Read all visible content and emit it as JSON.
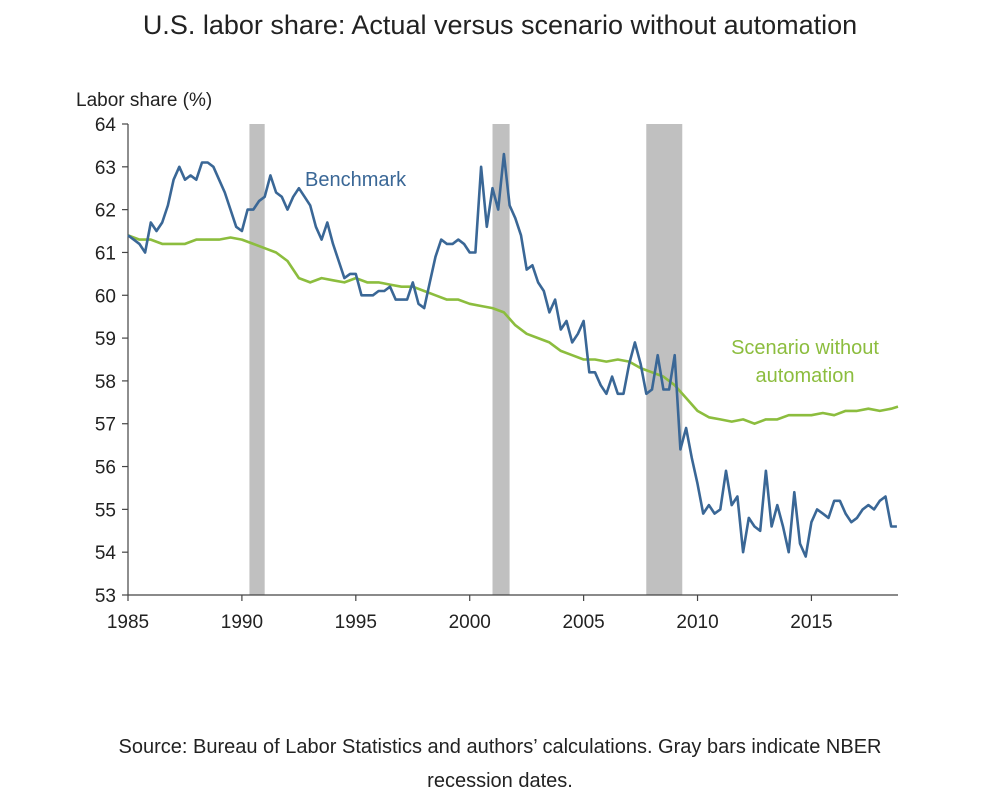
{
  "chart_data": {
    "type": "line",
    "title": "U.S. labor share: Actual versus scenario without automation",
    "ylabel": "Labor share (%)",
    "xlabel": "",
    "xlim": [
      1985,
      2018.8
    ],
    "ylim": [
      53,
      64
    ],
    "x_ticks": [
      1985,
      1990,
      1995,
      2000,
      2005,
      2010,
      2015
    ],
    "y_ticks": [
      53,
      54,
      55,
      56,
      57,
      58,
      59,
      60,
      61,
      62,
      63,
      64
    ],
    "grid": false,
    "recessions": [
      [
        1990.33,
        1991.0
      ],
      [
        2001.0,
        2001.75
      ],
      [
        2007.75,
        2009.33
      ]
    ],
    "series": [
      {
        "name": "Benchmark",
        "color": "#3a6796",
        "points": [
          [
            1985.0,
            61.4
          ],
          [
            1985.25,
            61.3
          ],
          [
            1985.5,
            61.2
          ],
          [
            1985.75,
            61.0
          ],
          [
            1986.0,
            61.7
          ],
          [
            1986.25,
            61.5
          ],
          [
            1986.5,
            61.7
          ],
          [
            1986.75,
            62.1
          ],
          [
            1987.0,
            62.7
          ],
          [
            1987.25,
            63.0
          ],
          [
            1987.5,
            62.7
          ],
          [
            1987.75,
            62.8
          ],
          [
            1988.0,
            62.7
          ],
          [
            1988.25,
            63.1
          ],
          [
            1988.5,
            63.1
          ],
          [
            1988.75,
            63.0
          ],
          [
            1989.0,
            62.7
          ],
          [
            1989.25,
            62.4
          ],
          [
            1989.5,
            62.0
          ],
          [
            1989.75,
            61.6
          ],
          [
            1990.0,
            61.5
          ],
          [
            1990.25,
            62.0
          ],
          [
            1990.5,
            62.0
          ],
          [
            1990.75,
            62.2
          ],
          [
            1991.0,
            62.3
          ],
          [
            1991.25,
            62.8
          ],
          [
            1991.5,
            62.4
          ],
          [
            1991.75,
            62.3
          ],
          [
            1992.0,
            62.0
          ],
          [
            1992.25,
            62.3
          ],
          [
            1992.5,
            62.5
          ],
          [
            1992.75,
            62.3
          ],
          [
            1993.0,
            62.1
          ],
          [
            1993.25,
            61.6
          ],
          [
            1993.5,
            61.3
          ],
          [
            1993.75,
            61.7
          ],
          [
            1994.0,
            61.2
          ],
          [
            1994.25,
            60.8
          ],
          [
            1994.5,
            60.4
          ],
          [
            1994.75,
            60.5
          ],
          [
            1995.0,
            60.5
          ],
          [
            1995.25,
            60.0
          ],
          [
            1995.5,
            60.0
          ],
          [
            1995.75,
            60.0
          ],
          [
            1996.0,
            60.1
          ],
          [
            1996.25,
            60.1
          ],
          [
            1996.5,
            60.2
          ],
          [
            1996.75,
            59.9
          ],
          [
            1997.0,
            59.9
          ],
          [
            1997.25,
            59.9
          ],
          [
            1997.5,
            60.3
          ],
          [
            1997.75,
            59.8
          ],
          [
            1998.0,
            59.7
          ],
          [
            1998.25,
            60.3
          ],
          [
            1998.5,
            60.9
          ],
          [
            1998.75,
            61.3
          ],
          [
            1999.0,
            61.2
          ],
          [
            1999.25,
            61.2
          ],
          [
            1999.5,
            61.3
          ],
          [
            1999.75,
            61.2
          ],
          [
            2000.0,
            61.0
          ],
          [
            2000.25,
            61.0
          ],
          [
            2000.5,
            63.0
          ],
          [
            2000.75,
            61.6
          ],
          [
            2001.0,
            62.5
          ],
          [
            2001.25,
            62.0
          ],
          [
            2001.5,
            63.3
          ],
          [
            2001.75,
            62.1
          ],
          [
            2002.0,
            61.8
          ],
          [
            2002.25,
            61.4
          ],
          [
            2002.5,
            60.6
          ],
          [
            2002.75,
            60.7
          ],
          [
            2003.0,
            60.3
          ],
          [
            2003.25,
            60.1
          ],
          [
            2003.5,
            59.6
          ],
          [
            2003.75,
            59.9
          ],
          [
            2004.0,
            59.2
          ],
          [
            2004.25,
            59.4
          ],
          [
            2004.5,
            58.9
          ],
          [
            2004.75,
            59.1
          ],
          [
            2005.0,
            59.4
          ],
          [
            2005.25,
            58.2
          ],
          [
            2005.5,
            58.2
          ],
          [
            2005.75,
            57.9
          ],
          [
            2006.0,
            57.7
          ],
          [
            2006.25,
            58.1
          ],
          [
            2006.5,
            57.7
          ],
          [
            2006.75,
            57.7
          ],
          [
            2007.0,
            58.4
          ],
          [
            2007.25,
            58.9
          ],
          [
            2007.5,
            58.4
          ],
          [
            2007.75,
            57.7
          ],
          [
            2008.0,
            57.8
          ],
          [
            2008.25,
            58.6
          ],
          [
            2008.5,
            57.8
          ],
          [
            2008.75,
            57.8
          ],
          [
            2009.0,
            58.6
          ],
          [
            2009.25,
            56.4
          ],
          [
            2009.5,
            56.9
          ],
          [
            2009.75,
            56.2
          ],
          [
            2010.0,
            55.6
          ],
          [
            2010.25,
            54.9
          ],
          [
            2010.5,
            55.1
          ],
          [
            2010.75,
            54.9
          ],
          [
            2011.0,
            55.0
          ],
          [
            2011.25,
            55.9
          ],
          [
            2011.5,
            55.1
          ],
          [
            2011.75,
            55.3
          ],
          [
            2012.0,
            54.0
          ],
          [
            2012.25,
            54.8
          ],
          [
            2012.5,
            54.6
          ],
          [
            2012.75,
            54.5
          ],
          [
            2013.0,
            55.9
          ],
          [
            2013.25,
            54.6
          ],
          [
            2013.5,
            55.1
          ],
          [
            2013.75,
            54.6
          ],
          [
            2014.0,
            54.0
          ],
          [
            2014.25,
            55.4
          ],
          [
            2014.5,
            54.2
          ],
          [
            2014.75,
            53.9
          ],
          [
            2015.0,
            54.7
          ],
          [
            2015.25,
            55.0
          ],
          [
            2015.5,
            54.9
          ],
          [
            2015.75,
            54.8
          ],
          [
            2016.0,
            55.2
          ],
          [
            2016.25,
            55.2
          ],
          [
            2016.5,
            54.9
          ],
          [
            2016.75,
            54.7
          ],
          [
            2017.0,
            54.8
          ],
          [
            2017.25,
            55.0
          ],
          [
            2017.5,
            55.1
          ],
          [
            2017.75,
            55.0
          ],
          [
            2018.0,
            55.2
          ],
          [
            2018.25,
            55.3
          ],
          [
            2018.5,
            54.6
          ],
          [
            2018.75,
            54.6
          ]
        ]
      },
      {
        "name": "Scenario without automation",
        "color": "#8cbd3e",
        "points": [
          [
            1985.0,
            61.4
          ],
          [
            1985.5,
            61.3
          ],
          [
            1986.0,
            61.3
          ],
          [
            1986.5,
            61.2
          ],
          [
            1987.0,
            61.2
          ],
          [
            1987.5,
            61.2
          ],
          [
            1988.0,
            61.3
          ],
          [
            1988.5,
            61.3
          ],
          [
            1989.0,
            61.3
          ],
          [
            1989.5,
            61.35
          ],
          [
            1990.0,
            61.3
          ],
          [
            1990.5,
            61.2
          ],
          [
            1991.0,
            61.1
          ],
          [
            1991.5,
            61.0
          ],
          [
            1992.0,
            60.8
          ],
          [
            1992.5,
            60.4
          ],
          [
            1993.0,
            60.3
          ],
          [
            1993.5,
            60.4
          ],
          [
            1994.0,
            60.35
          ],
          [
            1994.5,
            60.3
          ],
          [
            1995.0,
            60.4
          ],
          [
            1995.5,
            60.3
          ],
          [
            1996.0,
            60.3
          ],
          [
            1996.5,
            60.25
          ],
          [
            1997.0,
            60.2
          ],
          [
            1997.5,
            60.2
          ],
          [
            1998.0,
            60.1
          ],
          [
            1998.5,
            60.0
          ],
          [
            1999.0,
            59.9
          ],
          [
            1999.5,
            59.9
          ],
          [
            2000.0,
            59.8
          ],
          [
            2000.5,
            59.75
          ],
          [
            2001.0,
            59.7
          ],
          [
            2001.5,
            59.6
          ],
          [
            2002.0,
            59.3
          ],
          [
            2002.5,
            59.1
          ],
          [
            2003.0,
            59.0
          ],
          [
            2003.5,
            58.9
          ],
          [
            2004.0,
            58.7
          ],
          [
            2004.5,
            58.6
          ],
          [
            2005.0,
            58.5
          ],
          [
            2005.5,
            58.5
          ],
          [
            2006.0,
            58.45
          ],
          [
            2006.5,
            58.5
          ],
          [
            2007.0,
            58.45
          ],
          [
            2007.5,
            58.3
          ],
          [
            2008.0,
            58.2
          ],
          [
            2008.5,
            58.1
          ],
          [
            2009.0,
            57.9
          ],
          [
            2009.5,
            57.6
          ],
          [
            2010.0,
            57.3
          ],
          [
            2010.5,
            57.15
          ],
          [
            2011.0,
            57.1
          ],
          [
            2011.5,
            57.05
          ],
          [
            2012.0,
            57.1
          ],
          [
            2012.5,
            57.0
          ],
          [
            2013.0,
            57.1
          ],
          [
            2013.5,
            57.1
          ],
          [
            2014.0,
            57.2
          ],
          [
            2014.5,
            57.2
          ],
          [
            2015.0,
            57.2
          ],
          [
            2015.5,
            57.25
          ],
          [
            2016.0,
            57.2
          ],
          [
            2016.5,
            57.3
          ],
          [
            2017.0,
            57.3
          ],
          [
            2017.5,
            57.35
          ],
          [
            2018.0,
            57.3
          ],
          [
            2018.5,
            57.35
          ],
          [
            2018.8,
            57.4
          ]
        ]
      }
    ],
    "annotations": [
      {
        "text": "Benchmark",
        "series": 0
      },
      {
        "text": "Scenario without",
        "series": 1
      },
      {
        "text": "automation",
        "series": 1
      }
    ]
  },
  "source": {
    "line1": "Source: Bureau of Labor Statistics and authors’ calculations. Gray bars indicate NBER",
    "line2": "recession dates."
  }
}
